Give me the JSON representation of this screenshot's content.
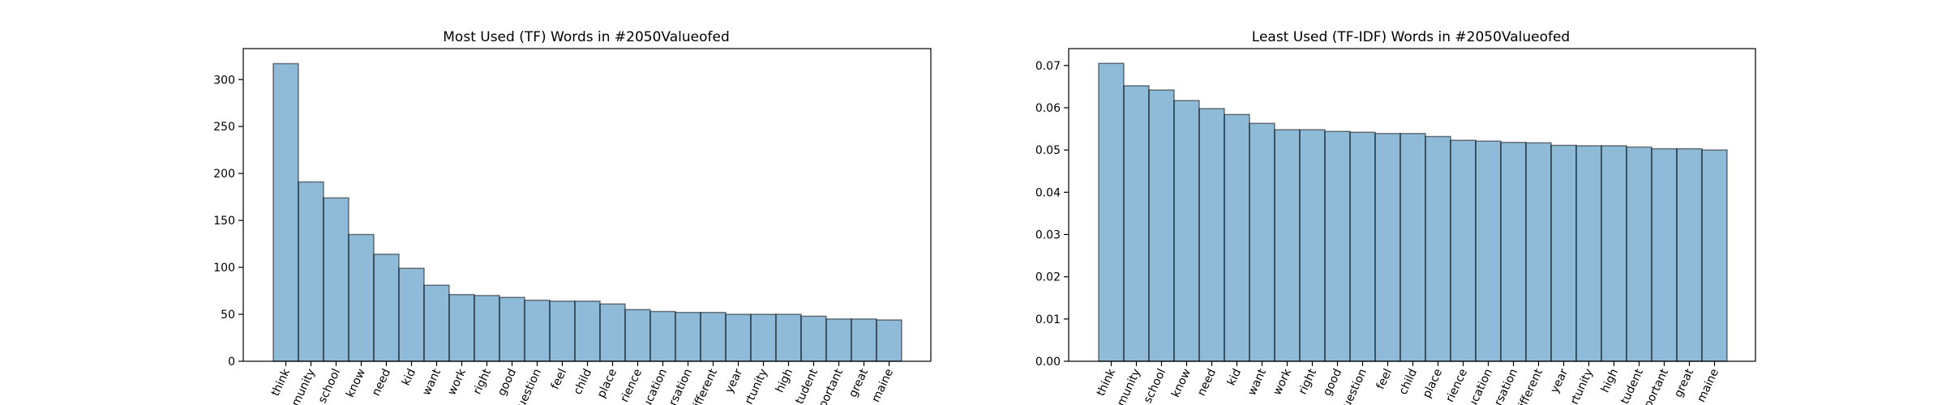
{
  "chart_data": [
    {
      "type": "bar",
      "title": "Most Used (TF) Words in #2050Valueofed",
      "xlabel": "",
      "ylabel": "",
      "categories": [
        "think",
        "munity",
        "school",
        "know",
        "need",
        "kid",
        "want",
        "work",
        "right",
        "good",
        "uestion",
        "feel",
        "child",
        "place",
        "rience",
        "ucation",
        "rsation",
        "ifferent",
        "year",
        "rtunity",
        "high",
        "tudent",
        "portant",
        "great",
        "maine"
      ],
      "values": [
        317,
        191,
        174,
        135,
        114,
        99,
        81,
        71,
        70,
        68,
        65,
        64,
        64,
        61,
        55,
        53,
        52,
        52,
        50,
        50,
        50,
        48,
        45,
        45,
        44
      ],
      "ylim": [
        0,
        333
      ],
      "yticks": [
        0,
        50,
        100,
        150,
        200,
        250,
        300
      ],
      "ytick_labels": [
        "0",
        "50",
        "100",
        "150",
        "200",
        "250",
        "300"
      ],
      "grid": false,
      "bar_color": "#1f77b4"
    },
    {
      "type": "bar",
      "title": "Least Used (TF-IDF) Words in #2050Valueofed",
      "xlabel": "",
      "ylabel": "",
      "categories": [
        "think",
        "munity",
        "school",
        "know",
        "need",
        "kid",
        "want",
        "work",
        "right",
        "good",
        "uestion",
        "feel",
        "child",
        "place",
        "rience",
        "ucation",
        "rsation",
        "ifferent",
        "year",
        "rtunity",
        "high",
        "tudent",
        "portant",
        "great",
        "maine"
      ],
      "values": [
        0.0705,
        0.0652,
        0.0642,
        0.0617,
        0.0598,
        0.0584,
        0.0563,
        0.0548,
        0.0548,
        0.0544,
        0.0542,
        0.0539,
        0.0539,
        0.0532,
        0.0523,
        0.0521,
        0.0518,
        0.0517,
        0.0511,
        0.051,
        0.051,
        0.0507,
        0.0503,
        0.0503,
        0.05
      ],
      "ylim": [
        0,
        0.074
      ],
      "yticks": [
        0,
        0.01,
        0.02,
        0.03,
        0.04,
        0.05,
        0.06,
        0.07
      ],
      "ytick_labels": [
        "0.00",
        "0.01",
        "0.02",
        "0.03",
        "0.04",
        "0.05",
        "0.06",
        "0.07"
      ],
      "grid": false,
      "bar_color": "#1f77b4"
    }
  ]
}
